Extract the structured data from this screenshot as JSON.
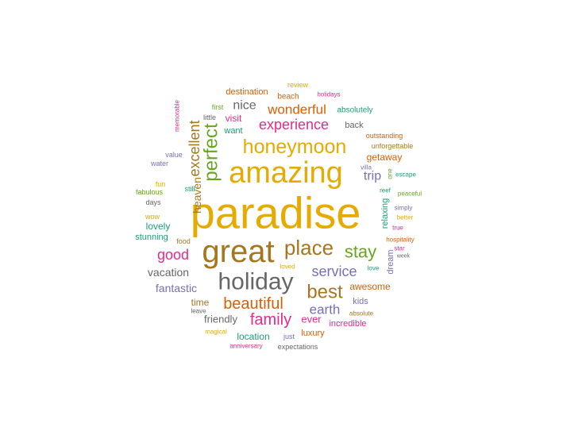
{
  "word_cloud": {
    "palette": {
      "teal": "#1b9e77",
      "orange": "#d95f02",
      "purple": "#7570b3",
      "magenta": "#e7298a",
      "green": "#66a61e",
      "gold": "#e6ab02",
      "brown": "#a6761d",
      "gray": "#666666"
    },
    "words": [
      {
        "text": "paradise",
        "color": "#e6ab02"
      },
      {
        "text": "amazing",
        "color": "#e6ab02"
      },
      {
        "text": "great",
        "color": "#a6761d"
      },
      {
        "text": "holiday",
        "color": "#666666"
      },
      {
        "text": "honeymoon",
        "color": "#e6ab02"
      },
      {
        "text": "place",
        "color": "#a6761d"
      },
      {
        "text": "best",
        "color": "#a6761d"
      },
      {
        "text": "perfect",
        "color": "#66a61e"
      },
      {
        "text": "stay",
        "color": "#66a61e"
      },
      {
        "text": "beautiful",
        "color": "#d95f02"
      },
      {
        "text": "family",
        "color": "#e7298a"
      },
      {
        "text": "excellent",
        "color": "#a6761d"
      },
      {
        "text": "experience",
        "color": "#e7298a"
      },
      {
        "text": "wonderful",
        "color": "#d95f02"
      },
      {
        "text": "service",
        "color": "#7570b3"
      },
      {
        "text": "good",
        "color": "#e7298a"
      },
      {
        "text": "earth",
        "color": "#7570b3"
      },
      {
        "text": "nice",
        "color": "#666666"
      },
      {
        "text": "trip",
        "color": "#7570b3"
      },
      {
        "text": "vacation",
        "color": "#666666"
      },
      {
        "text": "fantastic",
        "color": "#7570b3"
      },
      {
        "text": "heaven",
        "color": "#a6761d"
      },
      {
        "text": "awesome",
        "color": "#d95f02"
      },
      {
        "text": "friendly",
        "color": "#666666"
      },
      {
        "text": "time",
        "color": "#a6761d"
      },
      {
        "text": "ever",
        "color": "#e7298a"
      },
      {
        "text": "location",
        "color": "#1b9e77"
      },
      {
        "text": "getaway",
        "color": "#d95f02"
      },
      {
        "text": "lovely",
        "color": "#1b9e77"
      },
      {
        "text": "visit",
        "color": "#e7298a"
      },
      {
        "text": "destination",
        "color": "#d95f02"
      },
      {
        "text": "stunning",
        "color": "#1b9e77"
      },
      {
        "text": "incredible",
        "color": "#e7298a"
      },
      {
        "text": "back",
        "color": "#666666"
      },
      {
        "text": "relaxing",
        "color": "#1b9e77"
      },
      {
        "text": "dream",
        "color": "#7570b3"
      },
      {
        "text": "luxury",
        "color": "#d95f02"
      },
      {
        "text": "kids",
        "color": "#7570b3"
      },
      {
        "text": "want",
        "color": "#1b9e77"
      },
      {
        "text": "beach",
        "color": "#d95f02"
      },
      {
        "text": "absolutely",
        "color": "#1b9e77"
      },
      {
        "text": "outstanding",
        "color": "#d95f02"
      },
      {
        "text": "unforgettable",
        "color": "#a6761d"
      },
      {
        "text": "first",
        "color": "#66a61e"
      },
      {
        "text": "little",
        "color": "#666666"
      },
      {
        "text": "review",
        "color": "#e6ab02"
      },
      {
        "text": "holidays",
        "color": "#e7298a"
      },
      {
        "text": "memorable",
        "color": "#e7298a"
      },
      {
        "text": "value",
        "color": "#7570b3"
      },
      {
        "text": "water",
        "color": "#7570b3"
      },
      {
        "text": "fun",
        "color": "#e6ab02"
      },
      {
        "text": "fabulous",
        "color": "#66a61e"
      },
      {
        "text": "still",
        "color": "#1b9e77"
      },
      {
        "text": "days",
        "color": "#666666"
      },
      {
        "text": "wow",
        "color": "#e6ab02"
      },
      {
        "text": "food",
        "color": "#a6761d"
      },
      {
        "text": "villa",
        "color": "#7570b3"
      },
      {
        "text": "one",
        "color": "#66a61e"
      },
      {
        "text": "escape",
        "color": "#1b9e77"
      },
      {
        "text": "reef",
        "color": "#1b9e77"
      },
      {
        "text": "peaceful",
        "color": "#66a61e"
      },
      {
        "text": "simply",
        "color": "#7570b3"
      },
      {
        "text": "better",
        "color": "#e6ab02"
      },
      {
        "text": "true",
        "color": "#e7298a"
      },
      {
        "text": "hospitality",
        "color": "#d95f02"
      },
      {
        "text": "star",
        "color": "#e7298a"
      },
      {
        "text": "week",
        "color": "#666666"
      },
      {
        "text": "love",
        "color": "#1b9e77"
      },
      {
        "text": "loved",
        "color": "#e6ab02"
      },
      {
        "text": "leave",
        "color": "#666666"
      },
      {
        "text": "absolute",
        "color": "#a6761d"
      },
      {
        "text": "magical",
        "color": "#e6ab02"
      },
      {
        "text": "just",
        "color": "#7570b3"
      },
      {
        "text": "anniversary",
        "color": "#e7298a"
      },
      {
        "text": "expectations",
        "color": "#666666"
      }
    ]
  }
}
